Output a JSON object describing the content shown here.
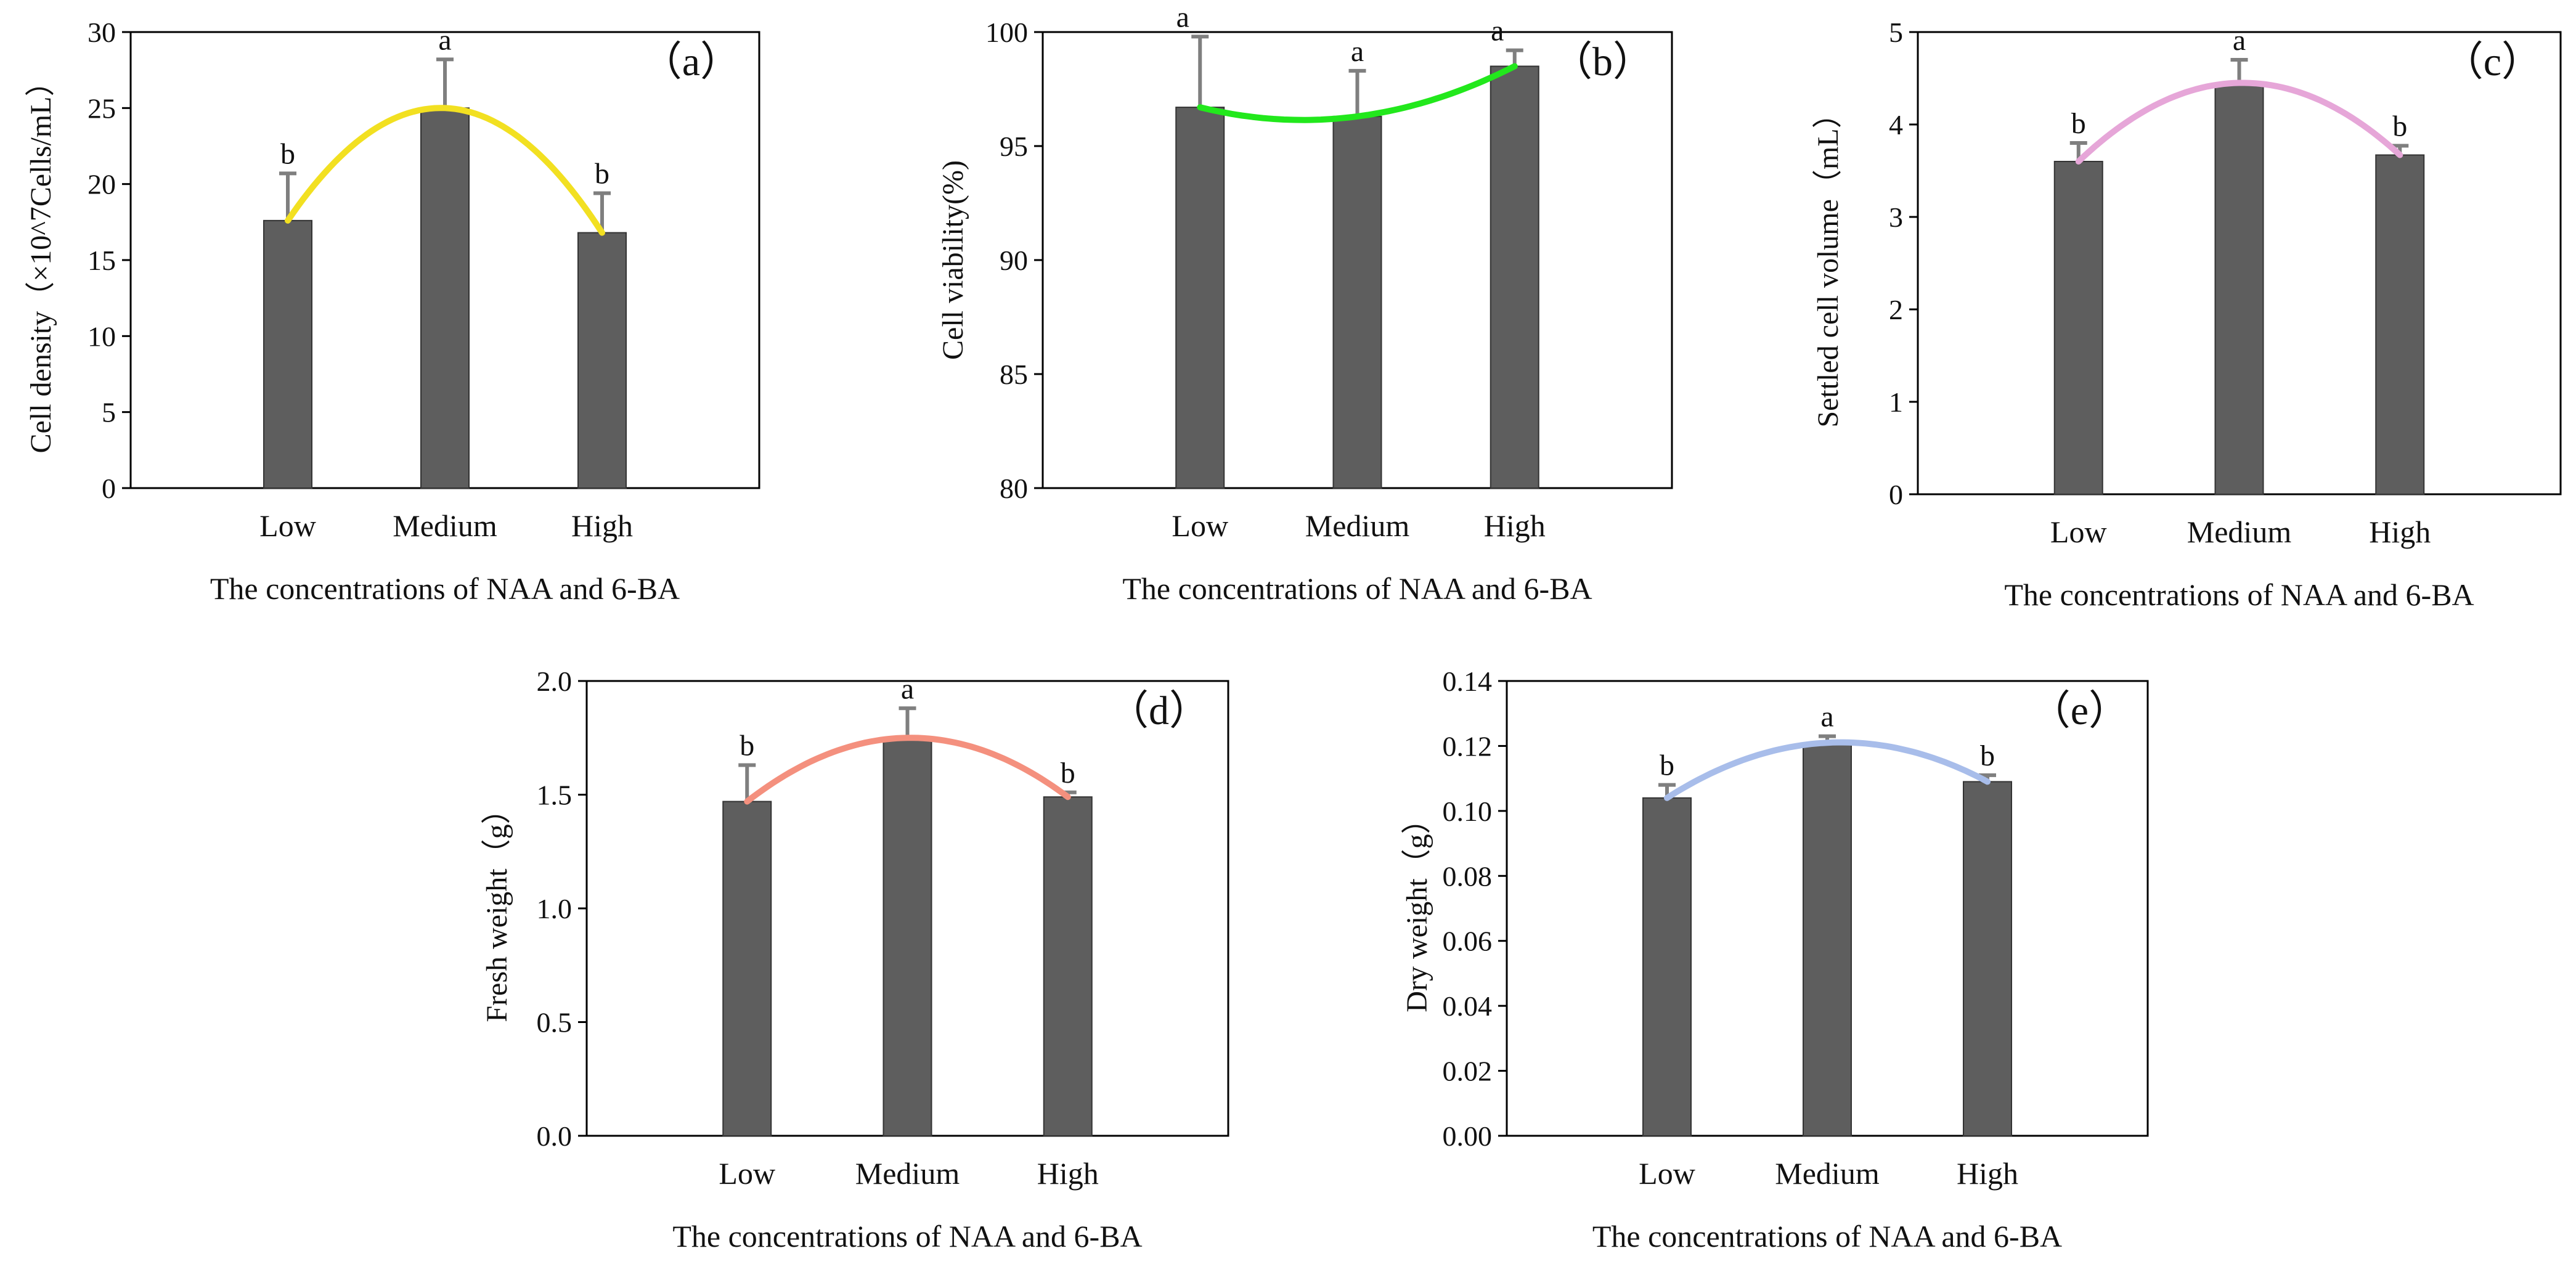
{
  "chart_data": [
    {
      "type": "bar",
      "panel_label": "（a）",
      "categories": [
        "Low",
        "Medium",
        "High"
      ],
      "values": [
        17.6,
        25.0,
        16.8
      ],
      "errors": [
        3.1,
        3.2,
        2.6
      ],
      "significance": [
        "b",
        "a",
        "b"
      ],
      "trend_color": "#f2e021",
      "ylabel": "Cell density（×10^7Cells/mL）",
      "xlabel": "The concentrations of NAA and 6-BA",
      "ylim": [
        0,
        30
      ],
      "yticks": [
        "0",
        "5",
        "10",
        "15",
        "20",
        "25",
        "30"
      ]
    },
    {
      "type": "bar",
      "panel_label": "（b）",
      "categories": [
        "Low",
        "Medium",
        "High"
      ],
      "values": [
        96.7,
        96.3,
        98.5
      ],
      "errors": [
        3.1,
        2.0,
        0.7
      ],
      "significance": [
        "a",
        "a",
        "a"
      ],
      "trend_color": "#22e81c",
      "ylabel": "Cell viability(%)",
      "xlabel": "The concentrations of NAA and 6-BA",
      "ylim": [
        80,
        100
      ],
      "yticks": [
        "80",
        "85",
        "90",
        "95",
        "100"
      ]
    },
    {
      "type": "bar",
      "panel_label": "（c）",
      "categories": [
        "Low",
        "Medium",
        "High"
      ],
      "values": [
        3.6,
        4.45,
        3.67
      ],
      "errors": [
        0.2,
        0.25,
        0.1
      ],
      "significance": [
        "b",
        "a",
        "b"
      ],
      "trend_color": "#e6a6d8",
      "ylabel": "Settled cell volume（mL）",
      "xlabel": "The concentrations of NAA and 6-BA",
      "ylim": [
        0,
        5
      ],
      "yticks": [
        "0",
        "1",
        "2",
        "3",
        "4",
        "5"
      ]
    },
    {
      "type": "bar",
      "panel_label": "（d）",
      "categories": [
        "Low",
        "Medium",
        "High"
      ],
      "values": [
        1.47,
        1.75,
        1.49
      ],
      "errors": [
        0.16,
        0.13,
        0.02
      ],
      "significance": [
        "b",
        "a",
        "b"
      ],
      "trend_color": "#f4907e",
      "ylabel": "Fresh weight（g）",
      "xlabel": "The concentrations of NAA and 6-BA",
      "ylim": [
        0,
        2.0
      ],
      "yticks": [
        "0.0",
        "0.5",
        "1.0",
        "1.5",
        "2.0"
      ]
    },
    {
      "type": "bar",
      "panel_label": "（e）",
      "categories": [
        "Low",
        "Medium",
        "High"
      ],
      "values": [
        0.104,
        0.121,
        0.109
      ],
      "errors": [
        0.004,
        0.002,
        0.002
      ],
      "significance": [
        "b",
        "a",
        "b"
      ],
      "trend_color": "#a8bdea",
      "ylabel": "Dry weight（g）",
      "xlabel": "The concentrations of NAA and 6-BA",
      "ylim": [
        0,
        0.14
      ],
      "yticks": [
        "0.00",
        "0.02",
        "0.04",
        "0.06",
        "0.08",
        "0.10",
        "0.12",
        "0.14"
      ]
    }
  ]
}
